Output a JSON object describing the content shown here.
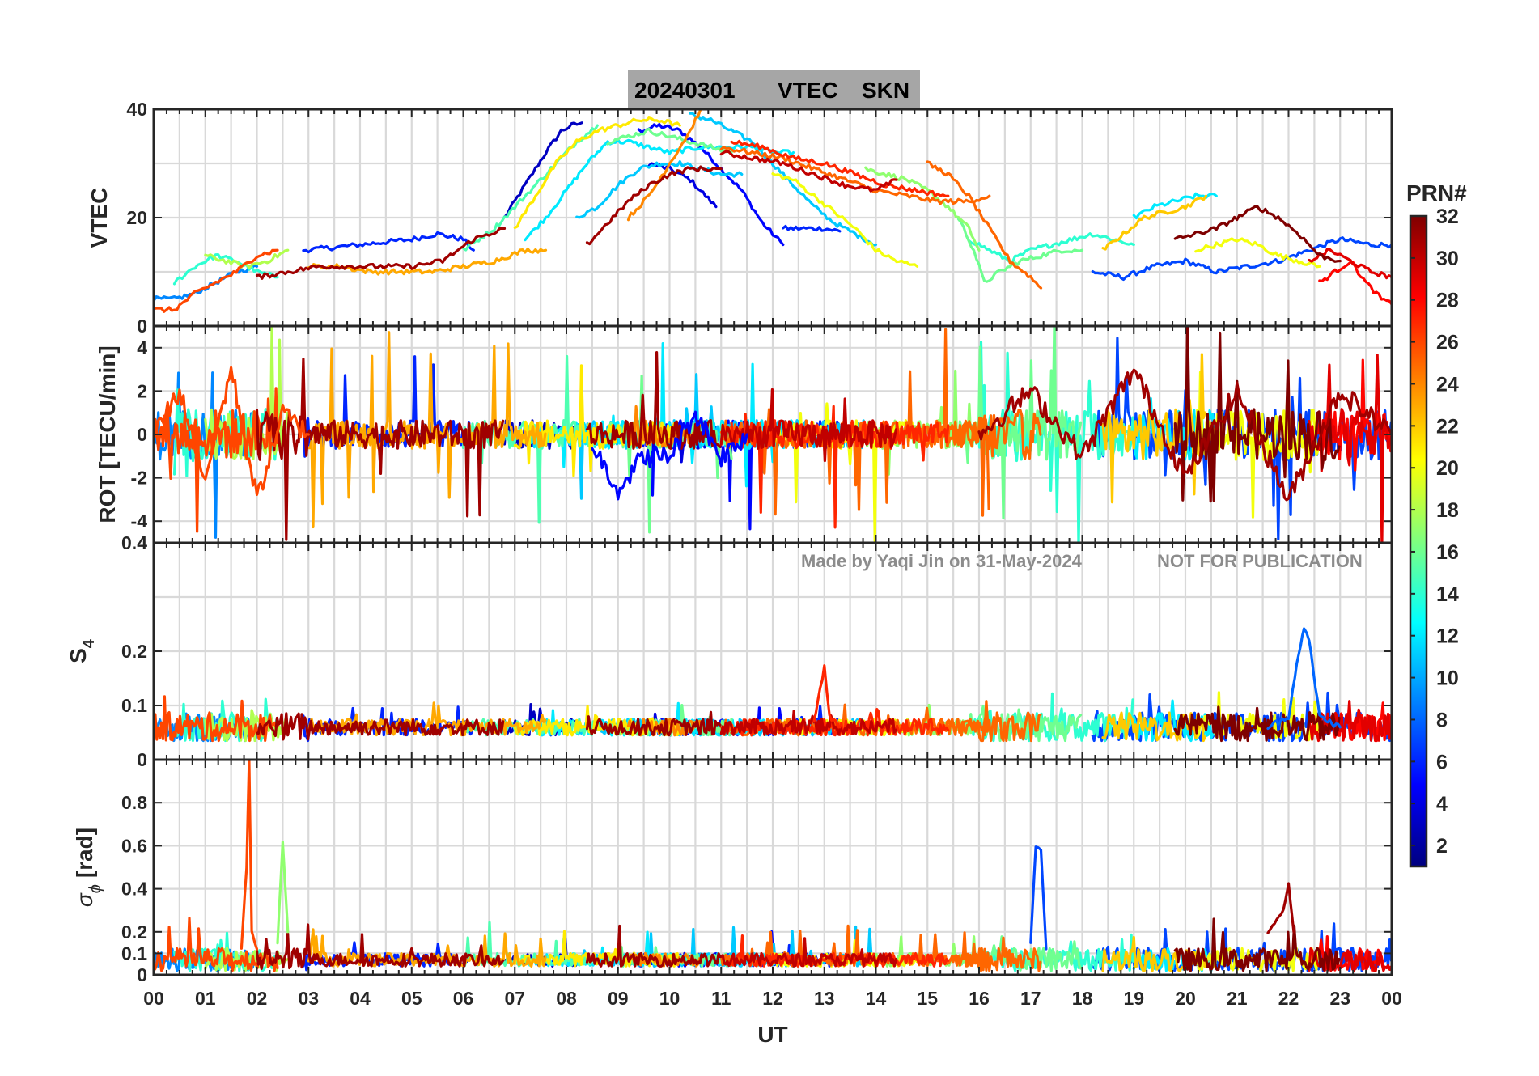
{
  "figure_title": {
    "date": "20240301",
    "parameter": "VTEC",
    "station": "SKN"
  },
  "watermark": {
    "credit": "Made by Yaqi Jin on 31-May-2024",
    "notice": "NOT FOR PUBLICATION"
  },
  "x_axis": {
    "label": "UT",
    "tick_labels": [
      "00",
      "01",
      "02",
      "03",
      "04",
      "05",
      "06",
      "07",
      "08",
      "09",
      "10",
      "11",
      "12",
      "13",
      "14",
      "15",
      "16",
      "17",
      "18",
      "19",
      "20",
      "21",
      "22",
      "23",
      "00"
    ],
    "range_hours": [
      0,
      24
    ]
  },
  "colorbar": {
    "title": "PRN#",
    "range": [
      1,
      32
    ],
    "tick_labels": [
      "2",
      "4",
      "6",
      "8",
      "10",
      "12",
      "14",
      "16",
      "18",
      "20",
      "22",
      "24",
      "26",
      "28",
      "30",
      "32"
    ],
    "colormap": "jet",
    "colormap_stops": [
      "#00007f",
      "#0000ff",
      "#007fff",
      "#00ffff",
      "#7fff7f",
      "#ffff00",
      "#ff7f00",
      "#ff0000",
      "#7f0000"
    ]
  },
  "panels": {
    "vtec": {
      "ylabel": "VTEC",
      "ylim": [
        0,
        40
      ],
      "tick_labels": [
        "0",
        "20",
        "40"
      ]
    },
    "rot": {
      "ylabel": "ROT [TECU/min]",
      "ylim": [
        -5,
        5
      ],
      "tick_labels": [
        "-4",
        "-2",
        "0",
        "2",
        "4"
      ]
    },
    "s4": {
      "ylabel_base": "S",
      "ylabel_sub": "4",
      "ylim": [
        0,
        0.4
      ],
      "tick_labels": [
        "0",
        "0.1",
        "0.2",
        "0.4"
      ]
    },
    "sigma_phi": {
      "ylabel_symbol": "σ",
      "ylabel_sub": "ϕ",
      "ylabel_unit": "[rad]",
      "ylim": [
        0,
        1
      ],
      "tick_labels": [
        "0",
        "0.1",
        "0.2",
        "0.4",
        "0.6",
        "0.8"
      ]
    }
  },
  "chart_data": [
    {
      "panel": "VTEC",
      "type": "line",
      "title": "20240301 VTEC SKN",
      "xlabel": "UT",
      "ylabel": "VTEC",
      "xlim": [
        0,
        24
      ],
      "ylim": [
        0,
        40
      ],
      "series": [
        {
          "prn": 3,
          "x": [
            6.8,
            7.2,
            7.6,
            7.9,
            8.1,
            8.3
          ],
          "y": [
            20,
            26,
            32,
            36,
            37,
            37.5
          ]
        },
        {
          "prn": 5,
          "x": [
            9.4,
            9.8,
            10.2,
            10.6,
            11.0,
            11.4,
            11.8,
            12.2
          ],
          "y": [
            36,
            37,
            36,
            33,
            29,
            25,
            19,
            15
          ]
        },
        {
          "prn": 4,
          "x": [
            9.6,
            10.0,
            10.4,
            10.8,
            10.9
          ],
          "y": [
            30,
            29,
            27,
            23,
            22
          ]
        },
        {
          "prn": 6,
          "x": [
            2.9,
            3.5,
            4.0,
            4.5,
            5.0,
            5.5,
            6.0,
            6.2
          ],
          "y": [
            14,
            14.5,
            15,
            15.5,
            16,
            17,
            16,
            14
          ]
        },
        {
          "prn": 6,
          "x": [
            12.2,
            12.6,
            13.0,
            13.3
          ],
          "y": [
            18,
            18,
            18,
            17.5
          ]
        },
        {
          "prn": 7,
          "x": [
            18.2,
            18.8,
            19.4,
            20.0,
            20.6,
            21.2,
            21.8,
            22.4,
            23.0,
            23.6,
            24.0
          ],
          "y": [
            10,
            9,
            11,
            12,
            10,
            11,
            12,
            14,
            16,
            15,
            15
          ]
        },
        {
          "prn": 9,
          "x": [
            0.0,
            0.4,
            0.8,
            1.2,
            1.6,
            2.0
          ],
          "y": [
            5,
            5,
            6,
            8,
            10,
            11
          ]
        },
        {
          "prn": 11,
          "x": [
            8.2,
            8.6,
            9.0,
            9.4,
            9.8,
            10.2,
            10.6,
            11.0,
            11.4
          ],
          "y": [
            20,
            22,
            26,
            29,
            30,
            30,
            29,
            28,
            28
          ]
        },
        {
          "prn": 11,
          "x": [
            10.4,
            10.8,
            11.2,
            11.6,
            12.0,
            12.4,
            12.8,
            13.2,
            13.6,
            14.0
          ],
          "y": [
            39,
            38,
            36,
            34,
            30,
            26,
            22,
            19,
            17,
            15
          ]
        },
        {
          "prn": 12,
          "x": [
            7.2,
            7.6,
            8.0,
            8.4,
            8.8,
            9.2,
            9.6,
            10.0,
            10.6,
            11.0,
            11.6,
            12.0,
            12.4
          ],
          "y": [
            16,
            20,
            25,
            30,
            34,
            34,
            33,
            32,
            33,
            33,
            33,
            32,
            32
          ]
        },
        {
          "prn": 12,
          "x": [
            19.0,
            19.4,
            19.8,
            20.2,
            20.6
          ],
          "y": [
            20,
            22,
            23,
            24,
            24
          ]
        },
        {
          "prn": 14,
          "x": [
            0.4,
            0.8,
            1.2,
            1.6,
            2.0,
            2.4
          ],
          "y": [
            8,
            11,
            13,
            12,
            10,
            9
          ]
        },
        {
          "prn": 14,
          "x": [
            15.8,
            16.2,
            16.6,
            17.0,
            17.4,
            17.8,
            18.2,
            18.6,
            19.0
          ],
          "y": [
            16,
            14,
            12,
            14,
            15,
            16,
            17,
            16,
            15
          ]
        },
        {
          "prn": 15,
          "x": [
            6.0,
            6.6,
            7.2,
            7.8,
            8.2,
            8.6
          ],
          "y": [
            14,
            18,
            24,
            30,
            34,
            37
          ]
        },
        {
          "prn": 16,
          "x": [
            8.8,
            9.2,
            9.6,
            10.0,
            10.4,
            10.8,
            11.2
          ],
          "y": [
            34,
            35,
            36,
            35,
            34,
            33,
            32
          ]
        },
        {
          "prn": 16,
          "x": [
            15.6,
            15.9,
            16.1,
            16.4,
            16.8,
            17.2,
            17.6,
            18.0
          ],
          "y": [
            20,
            14,
            8,
            10,
            12,
            13,
            14,
            14
          ]
        },
        {
          "prn": 17,
          "x": [
            13.8,
            14.2,
            14.6,
            15.0,
            15.4,
            15.8,
            16.0
          ],
          "y": [
            29,
            28,
            27,
            25,
            22,
            18,
            14
          ]
        },
        {
          "prn": 18,
          "x": [
            1.0,
            1.4,
            1.8,
            2.2,
            2.6
          ],
          "y": [
            13,
            12,
            11,
            12,
            14
          ]
        },
        {
          "prn": 20,
          "x": [
            12.0,
            12.4,
            12.8,
            13.2,
            13.6,
            14.0,
            14.4,
            14.8
          ],
          "y": [
            28,
            27,
            24,
            21,
            18,
            14,
            12,
            11
          ]
        },
        {
          "prn": 20,
          "x": [
            20.2,
            20.6,
            21.0,
            21.4,
            21.8,
            22.2,
            22.6
          ],
          "y": [
            14,
            15,
            16,
            15,
            13,
            12,
            11
          ]
        },
        {
          "prn": 21,
          "x": [
            7.0,
            7.4,
            7.8,
            8.2,
            8.6,
            9.0,
            9.4,
            9.8,
            10.2
          ],
          "y": [
            18,
            24,
            30,
            34,
            36,
            37,
            38,
            38,
            37
          ]
        },
        {
          "prn": 22,
          "x": [
            18.4,
            18.8,
            19.2,
            19.6,
            20.0,
            20.4
          ],
          "y": [
            14,
            17,
            20,
            21,
            22,
            24
          ]
        },
        {
          "prn": 23,
          "x": [
            3.0,
            3.6,
            4.2,
            4.8,
            5.4,
            6.0,
            6.6,
            7.2,
            7.6
          ],
          "y": [
            11,
            11,
            10,
            10,
            10,
            11,
            12,
            14,
            14
          ]
        },
        {
          "prn": 24,
          "x": [
            9.2,
            9.6,
            10.0,
            10.4,
            10.6
          ],
          "y": [
            20,
            24,
            30,
            36,
            40
          ]
        },
        {
          "prn": 25,
          "x": [
            15.0,
            15.4,
            15.8,
            16.2,
            16.6,
            17.0,
            17.2
          ],
          "y": [
            30,
            28,
            24,
            18,
            12,
            9,
            7
          ]
        },
        {
          "prn": 25,
          "x": [
            11.0,
            11.6,
            12.2,
            12.8,
            13.4,
            14.0,
            14.6,
            15.2,
            15.8,
            16.2
          ],
          "y": [
            33,
            32,
            31,
            29,
            27,
            25,
            24,
            23,
            23,
            24
          ]
        },
        {
          "prn": 26,
          "x": [
            0.0,
            0.4,
            0.8,
            1.2,
            1.6,
            2.0,
            2.4
          ],
          "y": [
            3,
            3,
            6,
            8,
            10,
            13,
            14
          ]
        },
        {
          "prn": 27,
          "x": [
            11.2,
            11.8,
            12.4,
            13.0,
            13.6,
            14.2,
            14.8,
            15.4
          ],
          "y": [
            34,
            33,
            31,
            30,
            28,
            26,
            25,
            24
          ]
        },
        {
          "prn": 28,
          "x": [
            22.6,
            22.9,
            23.2,
            23.5,
            23.8,
            24.0
          ],
          "y": [
            8,
            10,
            12,
            8,
            5,
            4
          ]
        },
        {
          "prn": 29,
          "x": [
            22.4,
            22.8,
            23.2,
            23.6,
            24.0
          ],
          "y": [
            12,
            14,
            12,
            10,
            9
          ]
        },
        {
          "prn": 30,
          "x": [
            11.0,
            11.6,
            12.2,
            12.8,
            13.4,
            14.0,
            14.4
          ],
          "y": [
            32,
            31,
            30,
            28,
            26,
            25,
            27
          ]
        },
        {
          "prn": 31,
          "x": [
            8.4,
            8.8,
            9.2,
            9.6,
            10.0,
            10.4,
            10.8,
            11.0
          ],
          "y": [
            15,
            19,
            23,
            26,
            28,
            29,
            29,
            29
          ]
        },
        {
          "prn": 31,
          "x": [
            2.0,
            2.6,
            3.2,
            3.8,
            4.4,
            5.0,
            5.6,
            6.2,
            6.8
          ],
          "y": [
            9,
            10,
            11,
            11,
            11,
            11,
            12,
            16,
            18
          ]
        },
        {
          "prn": 32,
          "x": [
            19.8,
            20.2,
            20.6,
            21.0,
            21.4,
            21.8,
            22.2,
            22.6,
            23.0
          ],
          "y": [
            16,
            17,
            18,
            20,
            22,
            20,
            17,
            13,
            12
          ]
        }
      ]
    },
    {
      "panel": "ROT",
      "type": "line",
      "xlabel": "UT",
      "ylabel": "ROT [TECU/min]",
      "xlim": [
        0,
        24
      ],
      "ylim": [
        -5,
        5
      ],
      "description_of_values": "Noisy rate of TEC per satellite, baseline near 0 TECU/min with spikes up to about ±4.5 TECU/min; larger fluctuations 00-03 UT and 16-24 UT.",
      "series": [
        {
          "prn": 26,
          "x": [
            0,
            0.5,
            1,
            1.5,
            2,
            2.5,
            3
          ],
          "y": [
            0,
            2,
            -2,
            3,
            -3,
            1,
            0
          ]
        },
        {
          "prn": 5,
          "x": [
            8.5,
            9,
            9.5,
            10,
            10.5,
            11,
            11.5
          ],
          "y": [
            -0.5,
            -2.5,
            -1,
            -1,
            1,
            -1,
            0
          ]
        },
        {
          "prn": 31,
          "x": [
            16,
            17,
            18,
            19,
            20,
            21,
            22,
            23,
            24
          ],
          "y": [
            0,
            2,
            -1,
            3,
            -2,
            2,
            -3,
            2,
            0
          ]
        }
      ]
    },
    {
      "panel": "S4",
      "type": "line",
      "xlabel": "UT",
      "ylabel": "S4",
      "xlim": [
        0,
        24
      ],
      "ylim": [
        0,
        0.4
      ],
      "description_of_values": "S4 index mostly 0.04-0.1 for all PRNs; peak about 0.17 near 13 UT and about 0.24 near 22.3 UT.",
      "series": [
        {
          "prn": 8,
          "x": [
            21.6,
            22.0,
            22.2,
            22.3,
            22.4,
            22.6,
            23.0
          ],
          "y": [
            0.06,
            0.08,
            0.2,
            0.24,
            0.22,
            0.08,
            0.06
          ]
        },
        {
          "prn": 27,
          "x": [
            12.8,
            13.0,
            13.1,
            13.3
          ],
          "y": [
            0.07,
            0.17,
            0.08,
            0.06
          ]
        }
      ]
    },
    {
      "panel": "sigma_phi",
      "type": "line",
      "xlabel": "UT",
      "ylabel": "σϕ [rad]",
      "xlim": [
        0,
        24
      ],
      "ylim": [
        0,
        1
      ],
      "description_of_values": "Phase scintillation mostly 0.05-0.2 rad; spikes of about 1.0 rad near 1.8 UT, 0.62 rad near 2.5 UT, about 0.55-0.6 rad near 17.1 UT and about 0.42 near 22 UT.",
      "series": [
        {
          "prn": 26,
          "x": [
            1.7,
            1.8,
            1.85,
            1.9,
            2.0
          ],
          "y": [
            0.12,
            0.5,
            1.0,
            0.2,
            0.12
          ]
        },
        {
          "prn": 17,
          "x": [
            2.4,
            2.5,
            2.6
          ],
          "y": [
            0.15,
            0.62,
            0.2
          ]
        },
        {
          "prn": 7,
          "x": [
            17.0,
            17.1,
            17.2,
            17.3
          ],
          "y": [
            0.15,
            0.6,
            0.58,
            0.12
          ]
        },
        {
          "prn": 31,
          "x": [
            21.6,
            21.9,
            22.0,
            22.1
          ],
          "y": [
            0.2,
            0.3,
            0.42,
            0.2
          ]
        }
      ]
    }
  ]
}
